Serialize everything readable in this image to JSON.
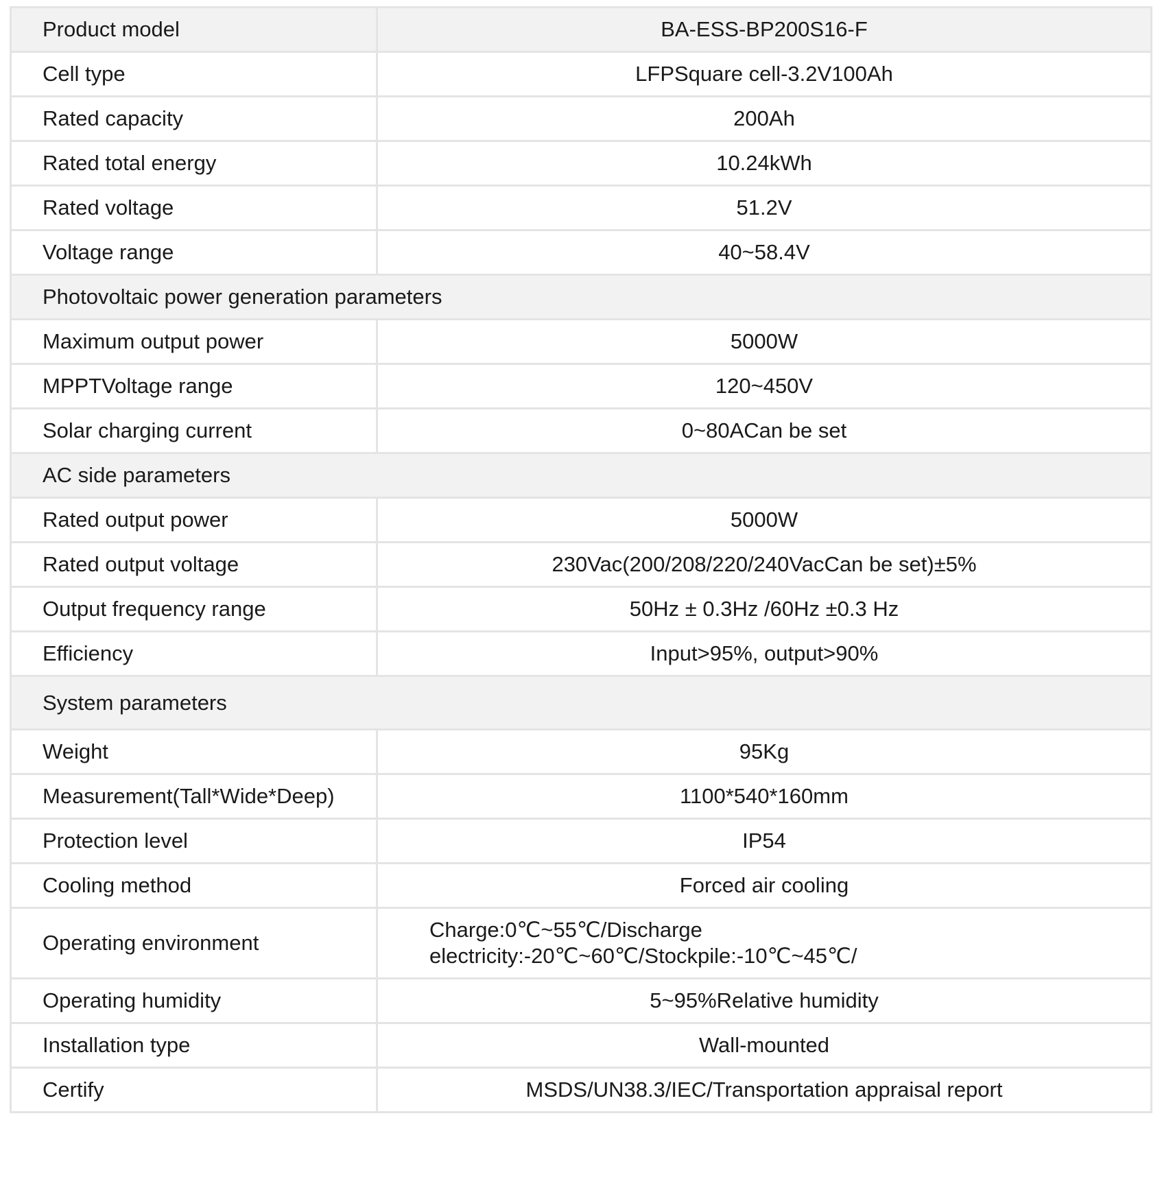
{
  "rows": [
    {
      "type": "head",
      "label": "Product model",
      "value": "BA-ESS-BP200S16-F"
    },
    {
      "label": "Cell type",
      "value": "LFPSquare cell-3.2V100Ah"
    },
    {
      "label": "Rated capacity",
      "value": "200Ah"
    },
    {
      "label": "Rated total energy",
      "value": "10.24kWh"
    },
    {
      "label": "Rated voltage",
      "value": "51.2V"
    },
    {
      "label": "Voltage range",
      "value": "40~58.4V"
    },
    {
      "type": "section",
      "label": "Photovoltaic power generation parameters"
    },
    {
      "label": "Maximum output power",
      "value": "5000W"
    },
    {
      "label": "MPPTVoltage range",
      "value": "120~450V"
    },
    {
      "label": "Solar charging current",
      "value": "0~80ACan be set"
    },
    {
      "type": "section",
      "label": "AC side parameters"
    },
    {
      "label": "Rated output power",
      "value": "5000W"
    },
    {
      "label": "Rated output voltage",
      "value": "230Vac(200/208/220/240VacCan be set)±5%"
    },
    {
      "label": "Output frequency range",
      "value": "50Hz ± 0.3Hz /60Hz ±0.3 Hz"
    },
    {
      "label": "Efficiency",
      "value": "Input>95%, output>90%"
    },
    {
      "type": "section",
      "tall": true,
      "label": "System parameters"
    },
    {
      "label": "Weight",
      "value": "95Kg"
    },
    {
      "label": "Measurement(Tall*Wide*Deep)",
      "value": "1100*540*160mm"
    },
    {
      "label": "Protection level",
      "value": "IP54"
    },
    {
      "label": "Cooling method",
      "value": "Forced air cooling"
    },
    {
      "label": "Operating environment",
      "tall": true,
      "value": "Charge:0℃~55℃/Discharge electricity:-20℃~60℃/Stockpile:-10℃~45℃/"
    },
    {
      "label": "Operating humidity",
      "value": "5~95%Relative humidity"
    },
    {
      "label": "Installation type",
      "value": "Wall-mounted"
    },
    {
      "label": "Certify",
      "value": "MSDS/UN38.3/IEC/Transportation appraisal report"
    }
  ]
}
